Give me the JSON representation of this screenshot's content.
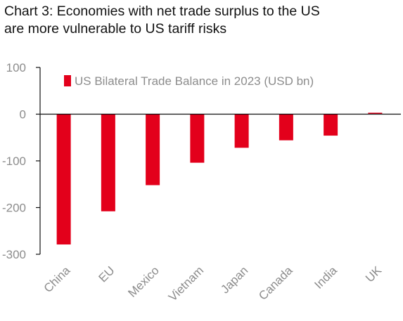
{
  "chart_data": {
    "type": "bar",
    "title_lines": [
      "Chart 3: Economies with net trade surplus to the US",
      "are more vulnerable to US tariff risks"
    ],
    "categories": [
      "China",
      "EU",
      "Mexico",
      "Vietnam",
      "Japan",
      "Canada",
      "India",
      "UK"
    ],
    "series": [
      {
        "name": "US Bilateral Trade Balance in 2023 (USD bn)",
        "values": [
          -279,
          -208,
          -152,
          -104,
          -72,
          -56,
          -46,
          3
        ]
      }
    ],
    "ylim": [
      -300,
      100
    ],
    "yticks": [
      "100",
      "0",
      "-100",
      "-200",
      "-300"
    ],
    "xlabel": "",
    "ylabel": "",
    "grid": false,
    "legend_position": "top-left inside plot",
    "bar_color": "#e3001b"
  }
}
